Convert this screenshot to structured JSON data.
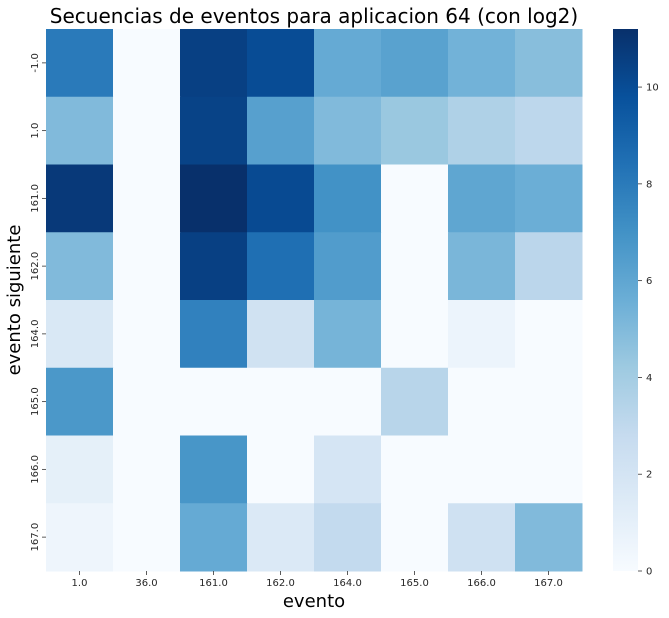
{
  "chart_data": {
    "type": "heatmap",
    "title": "Secuencias de eventos para aplicacion 64 (con log2)",
    "xlabel": "evento",
    "ylabel": "evento siguiente",
    "x_categories": [
      "1.0",
      "36.0",
      "161.0",
      "162.0",
      "164.0",
      "165.0",
      "166.0",
      "167.0"
    ],
    "y_categories": [
      "-1.0",
      "1.0",
      "161.0",
      "162.0",
      "164.0",
      "165.0",
      "166.0",
      "167.0"
    ],
    "values": [
      [
        8.0,
        0.0,
        10.5,
        10.0,
        5.8,
        6.2,
        5.4,
        4.8
      ],
      [
        5.0,
        0.0,
        10.4,
        6.3,
        5.0,
        4.3,
        3.6,
        3.1
      ],
      [
        10.8,
        0.0,
        11.2,
        10.1,
        7.0,
        0.0,
        6.0,
        5.6
      ],
      [
        5.0,
        0.0,
        10.5,
        8.5,
        6.5,
        0.0,
        5.2,
        3.2
      ],
      [
        1.7,
        0.0,
        7.7,
        2.2,
        5.3,
        0.0,
        0.6,
        0.0
      ],
      [
        6.7,
        0.0,
        0.0,
        0.0,
        0.0,
        3.3,
        0.0,
        0.0
      ],
      [
        1.0,
        0.0,
        6.8,
        0.0,
        1.9,
        0.0,
        0.0,
        0.0
      ],
      [
        0.5,
        0.0,
        5.8,
        1.6,
        2.9,
        0.0,
        2.3,
        5.0
      ]
    ],
    "colorscale": "Blues",
    "colorbar_range": [
      0,
      11.2
    ],
    "colorbar_ticks": [
      "0",
      "2",
      "4",
      "6",
      "8",
      "10"
    ],
    "colorbar_tick_values": [
      0,
      2,
      4,
      6,
      8,
      10
    ],
    "grid": false,
    "legend": "colorbar-right"
  }
}
